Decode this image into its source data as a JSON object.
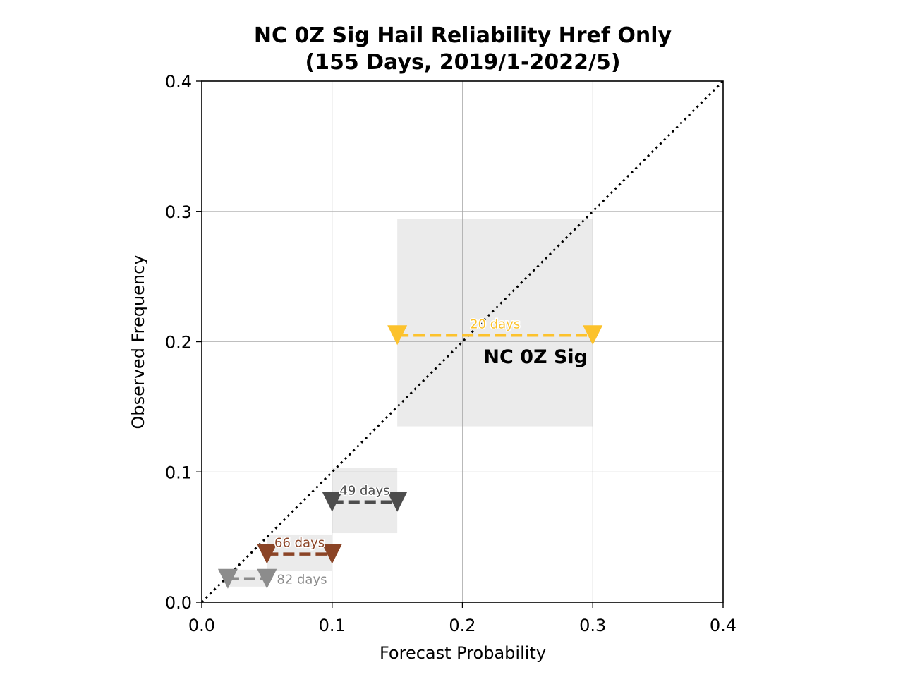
{
  "chart_data": {
    "type": "reliability",
    "title_line1": "NC 0Z Sig Hail Reliability Href Only",
    "title_line2": "(155 Days, 2019/1-2022/5)",
    "xlabel": "Forecast Probability",
    "ylabel": "Observed Frequency",
    "xlim": [
      0,
      0.4
    ],
    "ylim": [
      0,
      0.4
    ],
    "xticks": [
      0.0,
      0.1,
      0.2,
      0.3,
      0.4
    ],
    "yticks": [
      0.0,
      0.1,
      0.2,
      0.3,
      0.4
    ],
    "xtick_labels": [
      "0.0",
      "0.1",
      "0.2",
      "0.3",
      "0.4"
    ],
    "ytick_labels": [
      "0.0",
      "0.1",
      "0.2",
      "0.3",
      "0.4"
    ],
    "grid": true,
    "diagonal": true,
    "annotation": "NC 0Z Sig",
    "bins": [
      {
        "x0": 0.02,
        "x1": 0.05,
        "observed": 0.018,
        "y_low": 0.012,
        "y_high": 0.025,
        "days_label": "82 days",
        "color": "#8c8c8c",
        "label_pos": "right"
      },
      {
        "x0": 0.05,
        "x1": 0.1,
        "observed": 0.037,
        "y_low": 0.024,
        "y_high": 0.052,
        "days_label": "66 days",
        "color": "#8b4426",
        "label_pos": "above"
      },
      {
        "x0": 0.1,
        "x1": 0.15,
        "observed": 0.077,
        "y_low": 0.053,
        "y_high": 0.103,
        "days_label": "49 days",
        "color": "#4d4d4d",
        "label_pos": "above"
      },
      {
        "x0": 0.15,
        "x1": 0.3,
        "observed": 0.205,
        "y_low": 0.135,
        "y_high": 0.294,
        "days_label": "20 days",
        "color": "#fcc22c",
        "label_pos": "above"
      }
    ]
  }
}
